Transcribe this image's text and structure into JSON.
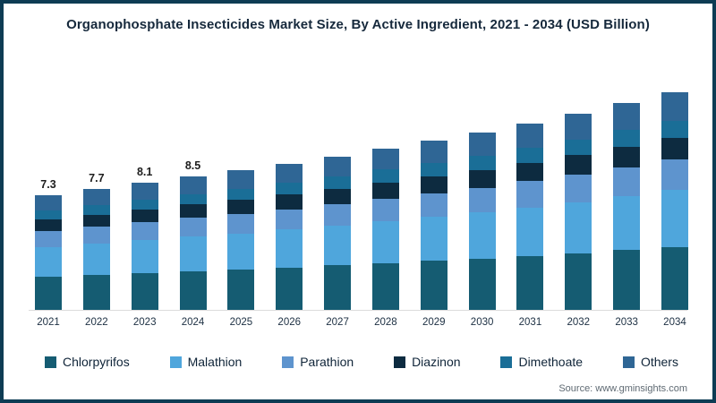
{
  "frame": {
    "source": "Source: www.gminsights.com"
  },
  "chart_data": {
    "type": "bar",
    "stacked": true,
    "title": "Organophosphate Insecticides Market Size, By Active Ingredient, 2021 - 2034 (USD Billion)",
    "unit": "USD Billion",
    "categories": [
      "2021",
      "2022",
      "2023",
      "2024",
      "2025",
      "2026",
      "2027",
      "2028",
      "2029",
      "2030",
      "2031",
      "2032",
      "2033",
      "2034"
    ],
    "series": [
      {
        "name": "Chlorpyrifos",
        "color": "#155c72",
        "values": [
          2.12,
          2.23,
          2.35,
          2.47,
          2.58,
          2.7,
          2.84,
          2.99,
          3.13,
          3.28,
          3.45,
          3.63,
          3.83,
          4.03
        ]
      },
      {
        "name": "Malathion",
        "color": "#4fa6dc",
        "values": [
          1.9,
          2.0,
          2.11,
          2.21,
          2.31,
          2.42,
          2.55,
          2.68,
          2.81,
          2.94,
          3.09,
          3.25,
          3.43,
          3.61
        ]
      },
      {
        "name": "Parathion",
        "color": "#5e94ce",
        "values": [
          1.02,
          1.08,
          1.13,
          1.19,
          1.25,
          1.3,
          1.37,
          1.44,
          1.51,
          1.58,
          1.67,
          1.75,
          1.85,
          1.95
        ]
      },
      {
        "name": "Diazinon",
        "color": "#0d2b40",
        "values": [
          0.73,
          0.77,
          0.81,
          0.85,
          0.89,
          0.93,
          0.98,
          1.03,
          1.08,
          1.13,
          1.19,
          1.25,
          1.32,
          1.39
        ]
      },
      {
        "name": "Dimethoate",
        "color": "#1a6e97",
        "values": [
          0.58,
          0.62,
          0.65,
          0.68,
          0.71,
          0.74,
          0.78,
          0.82,
          0.86,
          0.9,
          0.95,
          1.0,
          1.06,
          1.11
        ]
      },
      {
        "name": "Others",
        "color": "#2f6695",
        "values": [
          0.95,
          1.0,
          1.05,
          1.11,
          1.16,
          1.21,
          1.27,
          1.34,
          1.4,
          1.47,
          1.55,
          1.63,
          1.72,
          1.81
        ]
      }
    ],
    "totals": [
      7.3,
      7.7,
      8.1,
      8.5,
      8.9,
      9.3,
      9.8,
      10.3,
      10.8,
      11.3,
      11.9,
      12.5,
      13.2,
      13.9
    ],
    "labels": [
      "7.3",
      "7.7",
      "8.1",
      "8.5",
      "",
      "",
      "",
      "",
      "",
      "",
      "",
      "",
      "",
      ""
    ],
    "xlabel": "",
    "ylabel": "",
    "ylim": [
      0,
      15
    ],
    "grid": false,
    "legend_position": "bottom"
  }
}
